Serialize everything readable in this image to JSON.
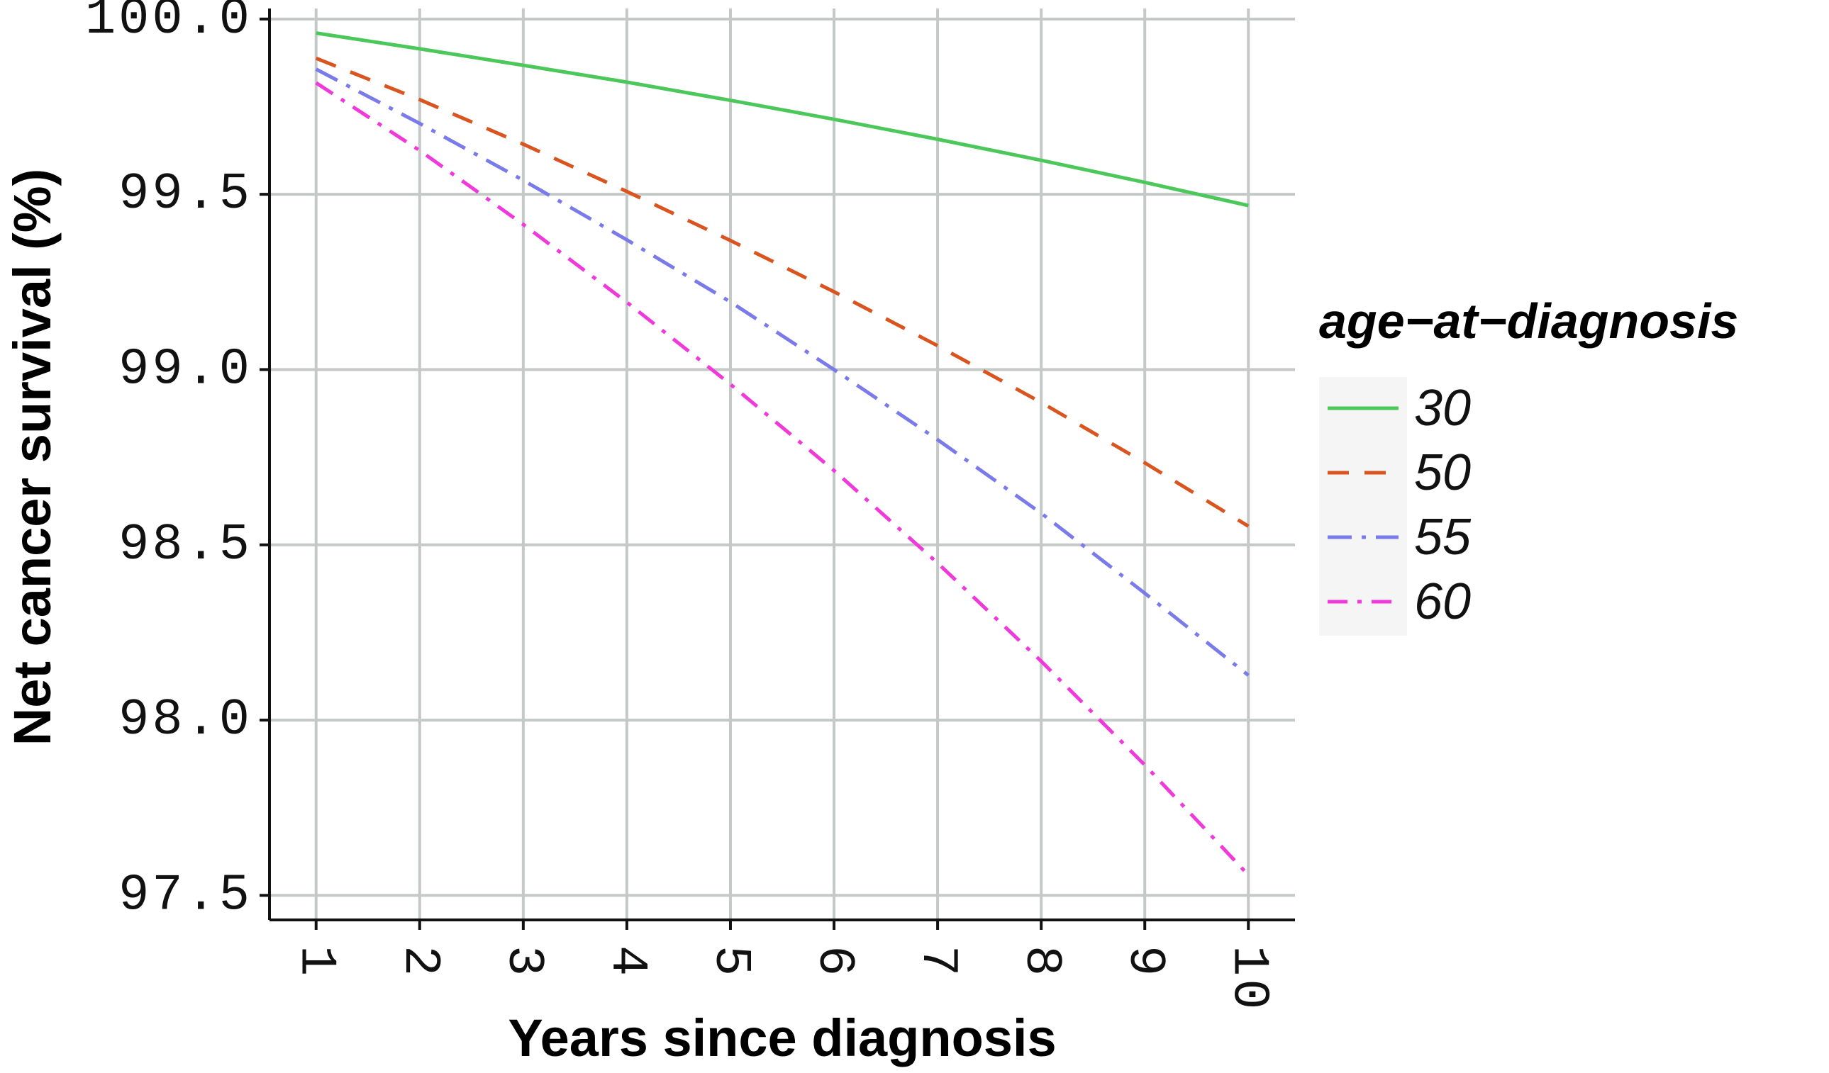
{
  "chart_data": {
    "type": "line",
    "title": "",
    "xlabel": "Years since diagnosis",
    "ylabel": "Net cancer survival (%)",
    "x": [
      1,
      2,
      3,
      4,
      5,
      6,
      7,
      8,
      9,
      10
    ],
    "x_tick_labels": [
      "1",
      "2",
      "3",
      "4",
      "5",
      "6",
      "7",
      "8",
      "9",
      "10"
    ],
    "y_ticks": [
      97.5,
      98.0,
      98.5,
      99.0,
      99.5,
      100.0
    ],
    "y_tick_labels": [
      "97.5",
      "98.0",
      "98.5",
      "99.0",
      "99.5",
      "100.0"
    ],
    "xlim": [
      0.55,
      10.45
    ],
    "ylim": [
      97.43,
      100.03
    ],
    "grid": true,
    "legend": {
      "title": "age−at−diagnosis",
      "placement": "right"
    },
    "series": [
      {
        "name": "30",
        "color": "#4cc85a",
        "dash": "solid",
        "values": [
          99.96,
          99.915,
          99.868,
          99.82,
          99.768,
          99.714,
          99.657,
          99.597,
          99.534,
          99.468
        ]
      },
      {
        "name": "50",
        "color": "#d9541e",
        "dash": "dashed",
        "values": [
          99.888,
          99.77,
          99.643,
          99.508,
          99.368,
          99.222,
          99.068,
          98.906,
          98.734,
          98.553
        ]
      },
      {
        "name": "55",
        "color": "#7a7bea",
        "dash": "dotdash",
        "values": [
          99.857,
          99.702,
          99.54,
          99.37,
          99.193,
          99.0,
          98.8,
          98.59,
          98.362,
          98.128
        ]
      },
      {
        "name": "60",
        "color": "#f138da",
        "dash": "dotdash-fine",
        "values": [
          99.818,
          99.625,
          99.414,
          99.192,
          98.958,
          98.712,
          98.448,
          98.168,
          97.872,
          97.558
        ]
      }
    ]
  }
}
